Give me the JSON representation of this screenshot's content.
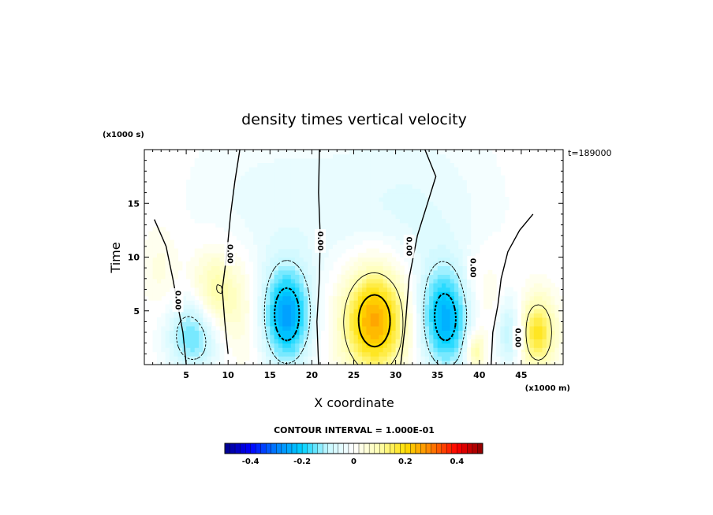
{
  "chart_data": {
    "type": "heatmap",
    "title": "density times vertical velocity",
    "xlabel": "X coordinate",
    "ylabel": "Time",
    "x_units": "(x1000 m)",
    "y_units": "(x1000 s)",
    "timestamp": "t=189000",
    "xlim": [
      0,
      50
    ],
    "ylim": [
      0,
      20
    ],
    "xticks": [
      5,
      10,
      15,
      20,
      25,
      30,
      35,
      40,
      45
    ],
    "yticks": [
      5,
      10,
      15
    ],
    "contour_interval_text": "CONTOUR INTERVAL = 1.000E-01",
    "contour_label": "0.00",
    "colorbar": {
      "range": [
        -0.5,
        0.5
      ],
      "ticks": [
        -0.4,
        -0.2,
        0,
        0.2,
        0.4
      ],
      "tick_labels": [
        "-0.4",
        "-0.2",
        "0",
        "0.2",
        "0.4"
      ],
      "stops": [
        "#00008c",
        "#0000ff",
        "#0080ff",
        "#00d2ff",
        "#c8f8ff",
        "#ffffff",
        "#ffffb0",
        "#ffe000",
        "#ff8000",
        "#ff0000",
        "#8c0000"
      ]
    },
    "blobs": [
      {
        "x": 8.5,
        "y": 6.5,
        "sx": 2.0,
        "sy": 3.0,
        "amp": 0.13
      },
      {
        "x": 6.0,
        "y": 2.8,
        "sx": 2.2,
        "sy": 2.4,
        "amp": -0.17
      },
      {
        "x": 12.0,
        "y": 5.0,
        "sx": 1.6,
        "sy": 4.0,
        "amp": 0.04
      },
      {
        "x": 17.0,
        "y": 4.5,
        "sx": 2.0,
        "sy": 3.2,
        "amp": -0.25
      },
      {
        "x": 27.5,
        "y": 4.3,
        "sx": 2.8,
        "sy": 3.6,
        "amp": 0.27
      },
      {
        "x": 36.0,
        "y": 4.3,
        "sx": 2.2,
        "sy": 3.4,
        "amp": -0.24
      },
      {
        "x": 40.0,
        "y": 6.5,
        "sx": 2.2,
        "sy": 3.0,
        "amp": 0.05
      },
      {
        "x": 39.5,
        "y": 1.3,
        "sx": 0.8,
        "sy": 1.4,
        "amp": 0.13
      },
      {
        "x": 43.5,
        "y": 3.0,
        "sx": 1.0,
        "sy": 2.4,
        "amp": -0.11
      },
      {
        "x": 47.0,
        "y": 3.0,
        "sx": 1.5,
        "sy": 2.4,
        "amp": 0.18
      },
      {
        "x": 2.0,
        "y": 9.0,
        "sx": 1.6,
        "sy": 3.0,
        "amp": 0.04
      },
      {
        "x": 26.0,
        "y": 14.0,
        "sx": 8.0,
        "sy": 6.0,
        "amp": -0.035
      },
      {
        "x": 34.0,
        "y": 14.0,
        "sx": 6.0,
        "sy": 6.0,
        "amp": -0.03
      },
      {
        "x": 13.0,
        "y": 14.0,
        "sx": 6.0,
        "sy": 6.0,
        "amp": -0.03
      }
    ]
  }
}
